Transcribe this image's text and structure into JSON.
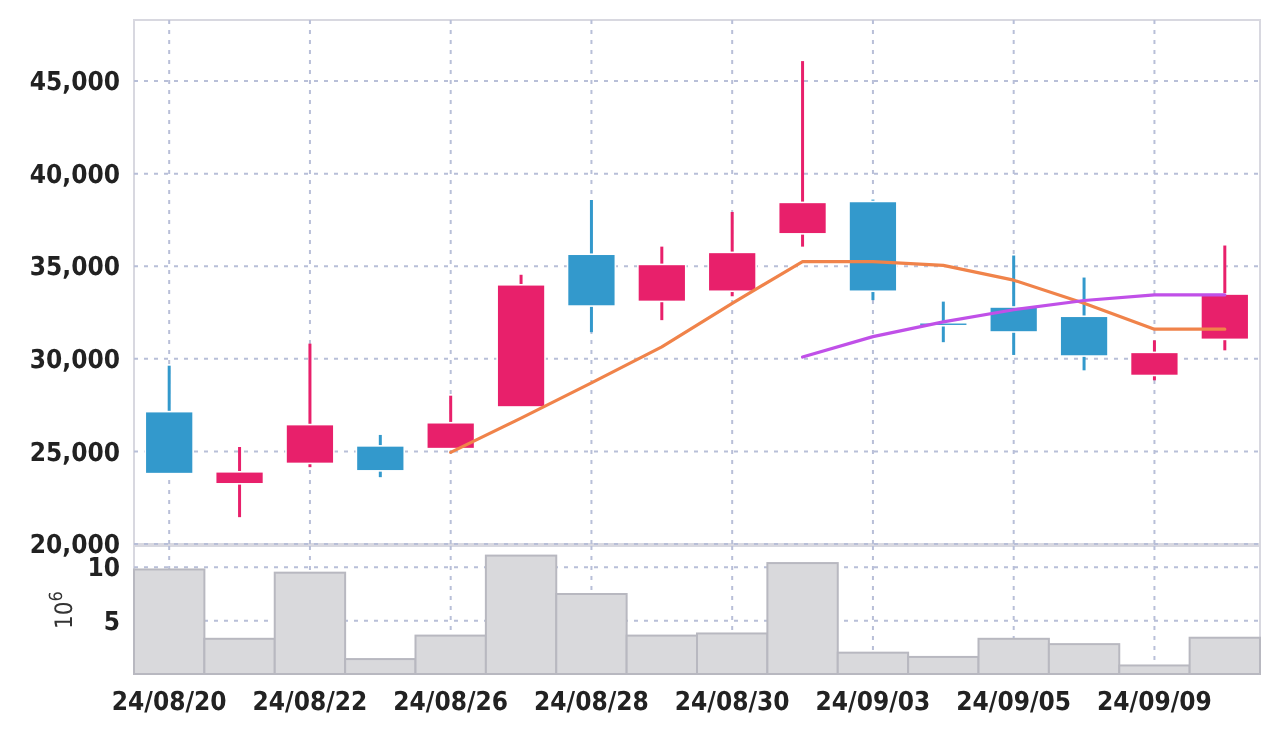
{
  "chart_data": [
    {
      "type": "candlestick",
      "categories": [
        null,
        null,
        null,
        null,
        null,
        null,
        null,
        null,
        null,
        null,
        null,
        null,
        null,
        null,
        null,
        null
      ],
      "tick_labels": "y",
      "ylim": [
        20000,
        48300
      ],
      "yticks": [
        {
          "value": 20000,
          "label": "20,000"
        },
        {
          "value": 25000,
          "label": "25,000"
        },
        {
          "value": 30000,
          "label": "30,000"
        },
        {
          "value": 35000,
          "label": "35,000"
        },
        {
          "value": 40000,
          "label": "40,000"
        },
        {
          "value": 45000,
          "label": "45,000"
        }
      ],
      "grid": true,
      "ohlc": [
        [
          27150,
          29630,
          23790,
          23800
        ],
        [
          23250,
          25240,
          21450,
          23900
        ],
        [
          24350,
          30820,
          24150,
          26450
        ],
        [
          25300,
          25890,
          23610,
          23950
        ],
        [
          25150,
          28010,
          25130,
          26550
        ],
        [
          27400,
          34540,
          27400,
          34000
        ],
        [
          35650,
          38580,
          31440,
          32850
        ],
        [
          33100,
          36060,
          32090,
          35100
        ],
        [
          33650,
          37930,
          33380,
          35750
        ],
        [
          36750,
          46080,
          36060,
          38450
        ],
        [
          38500,
          38600,
          33170,
          33650
        ],
        [
          31950,
          33090,
          30900,
          31900
        ],
        [
          32800,
          35580,
          30210,
          31450
        ],
        [
          32300,
          34390,
          29380,
          30150
        ],
        [
          29100,
          31000,
          28840,
          30350
        ],
        [
          31050,
          36120,
          30460,
          33500
        ]
      ],
      "colors": [
        "#3399cc",
        "#e8206b",
        "#e8206b",
        "#3399cc",
        "#e8206b",
        "#e8206b",
        "#3399cc",
        "#e8206b",
        "#e8206b",
        "#e8206b",
        "#3399cc",
        "#3399cc",
        "#3399cc",
        "#3399cc",
        "#e8206b",
        "#e8206b"
      ],
      "series": [
        {
          "type": "line",
          "color": "#f0834a",
          "values": [
            null,
            null,
            null,
            null,
            24950,
            26800,
            28700,
            30650,
            33000,
            35250,
            35250,
            35050,
            34250,
            33000,
            31600,
            31600
          ]
        },
        {
          "type": "line",
          "color": "#c050e8",
          "values": [
            null,
            null,
            null,
            null,
            null,
            null,
            null,
            null,
            null,
            30100,
            31200,
            32000,
            32650,
            33150,
            33450,
            33450
          ]
        }
      ]
    },
    {
      "type": "bar",
      "categories": [
        "24/08/20",
        null,
        "24/08/22",
        null,
        "24/08/26",
        null,
        "24/08/28",
        null,
        "24/08/30",
        null,
        "24/09/03",
        null,
        "24/09/05",
        null,
        "24/09/09",
        null
      ],
      "ylabel": "10$^{6}$",
      "ylim": [
        0,
        12
      ],
      "yticks": [
        5,
        10
      ],
      "grid": true,
      "color": "#d9d9dc",
      "values": [
        9.8,
        3.3,
        9.5,
        1.4,
        3.6,
        11.1,
        7.5,
        3.6,
        3.8,
        10.4,
        2.0,
        1.6,
        3.3,
        2.8,
        0.8,
        3.4
      ]
    }
  ]
}
